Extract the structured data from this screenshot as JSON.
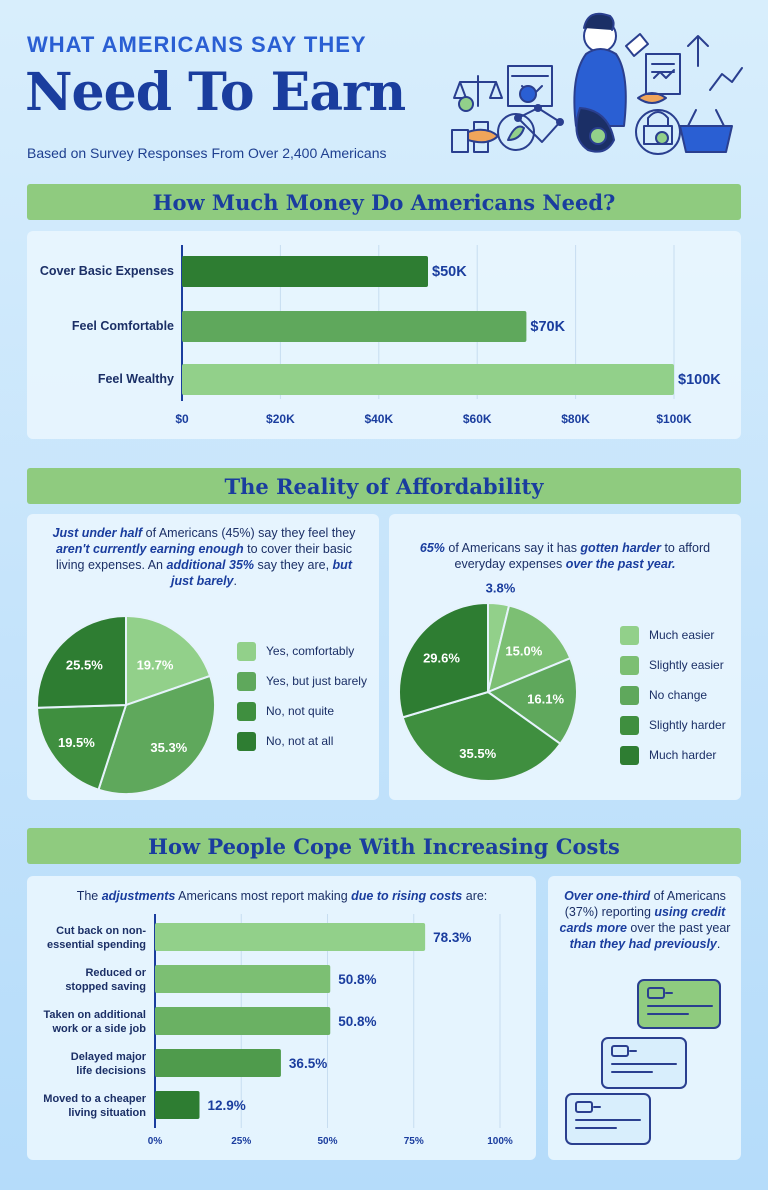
{
  "header": {
    "kicker": "WHAT AMERICANS SAY THEY",
    "headline": "Need To Earn",
    "subtitle": "Based on Survey Responses From Over 2,400 Americans"
  },
  "sections": {
    "money": "How Much Money Do Americans Need?",
    "affordability": "The Reality of Affordability",
    "cope": "How People Cope With Increasing Costs"
  },
  "captions": {
    "pie1": [
      {
        "t": "Just under half",
        "b": true
      },
      {
        "t": " of Americans (45%) say they feel they "
      },
      {
        "t": "aren't currently earning enough",
        "b": true
      },
      {
        "t": " to cover their basic living expenses. An "
      },
      {
        "t": "additional 35%",
        "b": true
      },
      {
        "t": " say they are, "
      },
      {
        "t": "but just barely",
        "b": true
      },
      {
        "t": "."
      }
    ],
    "pie2": [
      {
        "t": "65%",
        "b": true
      },
      {
        "t": " of Americans say it has "
      },
      {
        "t": "gotten harder",
        "b": true
      },
      {
        "t": " to afford everyday expenses "
      },
      {
        "t": "over the past year.",
        "b": true
      }
    ],
    "bars": [
      {
        "t": "The "
      },
      {
        "t": "adjustments",
        "b": true
      },
      {
        "t": " Americans most report making "
      },
      {
        "t": "due to rising costs",
        "b": true
      },
      {
        "t": " are:"
      }
    ],
    "credit": [
      {
        "t": "Over one-third",
        "b": true
      },
      {
        "t": " of Americans (37%) reporting "
      },
      {
        "t": "using credit cards more",
        "b": true
      },
      {
        "t": " over the past year "
      },
      {
        "t": "than they had previously",
        "b": true
      },
      {
        "t": "."
      }
    ]
  },
  "chart_data": [
    {
      "type": "bar",
      "orientation": "horizontal",
      "title": "How Much Money Do Americans Need?",
      "categories": [
        "Cover Basic Expenses",
        "Feel Comfortable",
        "Feel Wealthy"
      ],
      "values": [
        50000,
        70000,
        100000
      ],
      "value_labels": [
        "$50K",
        "$70K",
        "$100K"
      ],
      "colors": [
        "#2e7d32",
        "#5fa85c",
        "#92d08a"
      ],
      "xlim": [
        0,
        100000
      ],
      "xticks": [
        "$0",
        "$20K",
        "$40K",
        "$60K",
        "$80K",
        "$100K"
      ],
      "grid": true
    },
    {
      "type": "pie",
      "labels": [
        "Yes, comfortably",
        "Yes, but just barely",
        "No, not quite",
        "No, not at all"
      ],
      "values": [
        19.7,
        35.3,
        19.5,
        25.5
      ],
      "value_labels": [
        "19.7%",
        "35.3%",
        "19.5%",
        "25.5%"
      ],
      "colors": [
        "#92d08a",
        "#5fa85c",
        "#3f8f3f",
        "#2e7d32"
      ],
      "legend": "right"
    },
    {
      "type": "pie",
      "labels": [
        "Much easier",
        "Slightly easier",
        "No change",
        "Slightly harder",
        "Much harder"
      ],
      "values": [
        3.8,
        15.0,
        16.1,
        35.5,
        29.6
      ],
      "value_labels": [
        "3.8%",
        "15.0%",
        "16.1%",
        "35.5%",
        "29.6%"
      ],
      "colors": [
        "#92d08a",
        "#7cbf73",
        "#5fa85c",
        "#3f8f3f",
        "#2e7d32"
      ],
      "legend": "right"
    },
    {
      "type": "bar",
      "orientation": "horizontal",
      "categories": [
        "Cut back on non-essential spending",
        "Reduced or stopped saving",
        "Taken on additional work or a side job",
        "Delayed major life decisions",
        "Moved to a cheaper living situation"
      ],
      "category_lines": [
        [
          "Cut back on non-",
          "essential spending"
        ],
        [
          "Reduced or",
          "stopped saving"
        ],
        [
          "Taken on additional",
          "work or a side job"
        ],
        [
          "Delayed major",
          "life decisions"
        ],
        [
          "Moved to a cheaper",
          "living situation"
        ]
      ],
      "values": [
        78.3,
        50.8,
        50.8,
        36.5,
        12.9
      ],
      "value_labels": [
        "78.3%",
        "50.8%",
        "50.8%",
        "36.5%",
        "12.9%"
      ],
      "colors": [
        "#92d08a",
        "#7cbf73",
        "#6ab163",
        "#4f9b4c",
        "#2e7d32"
      ],
      "xlim": [
        0,
        100
      ],
      "xticks": [
        "0%",
        "25%",
        "50%",
        "75%",
        "100%"
      ],
      "grid": true
    }
  ]
}
